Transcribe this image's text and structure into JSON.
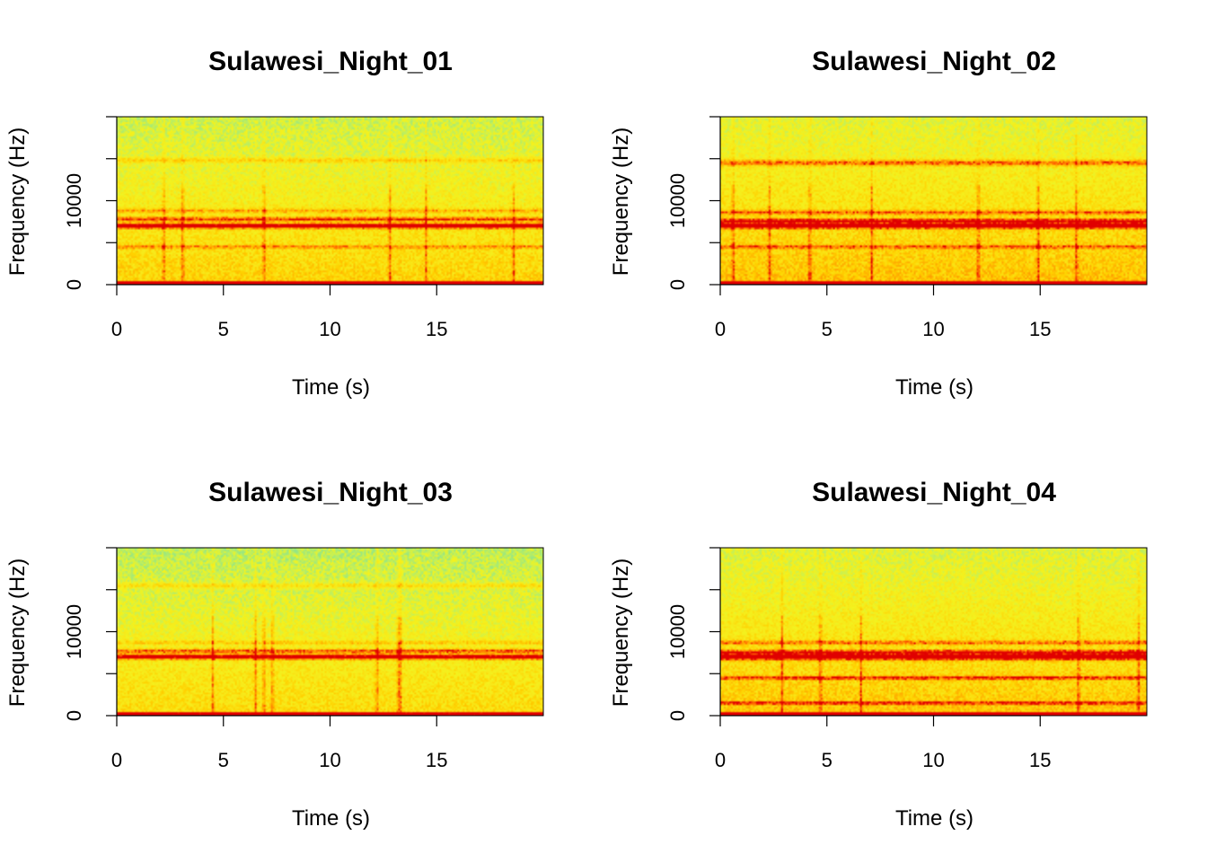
{
  "colors": {
    "palette": [
      "#8fe58a",
      "#c3f05a",
      "#f3f31e",
      "#f8e81a",
      "#ffd200",
      "#ffaa00",
      "#ff6000",
      "#e00000"
    ],
    "background": "#ffffff"
  },
  "chart_data": [
    {
      "type": "heatmap",
      "title": "Sulawesi_Night_01",
      "xlabel": "Time (s)",
      "ylabel": "Frequency (Hz)",
      "xlim": [
        0,
        20
      ],
      "ylim": [
        0,
        20000
      ],
      "xticks": [
        0,
        5,
        10,
        15
      ],
      "yticks": [
        0,
        10000
      ],
      "horizontal_bands": [
        {
          "freq": 7000,
          "intensity": 0.95,
          "width": 300
        },
        {
          "freq": 7800,
          "intensity": 0.6,
          "width": 250
        },
        {
          "freq": 4500,
          "intensity": 0.35,
          "width": 200
        },
        {
          "freq": 8800,
          "intensity": 0.35,
          "width": 250
        },
        {
          "freq": 14800,
          "intensity": 0.3,
          "width": 300
        }
      ],
      "vertical_streaks": [
        2.2,
        3.1,
        6.9,
        12.8,
        14.5,
        18.6
      ],
      "noise_center": 0.35
    },
    {
      "type": "heatmap",
      "title": "Sulawesi_Night_02",
      "xlabel": "Time (s)",
      "ylabel": "Frequency (Hz)",
      "xlim": [
        0,
        20
      ],
      "ylim": [
        0,
        20000
      ],
      "xticks": [
        0,
        5,
        10,
        15
      ],
      "yticks": [
        0,
        10000
      ],
      "horizontal_bands": [
        {
          "freq": 7000,
          "intensity": 0.95,
          "width": 300
        },
        {
          "freq": 7600,
          "intensity": 0.7,
          "width": 250
        },
        {
          "freq": 8600,
          "intensity": 0.45,
          "width": 250
        },
        {
          "freq": 4500,
          "intensity": 0.4,
          "width": 200
        },
        {
          "freq": 14500,
          "intensity": 0.55,
          "width": 350
        }
      ],
      "vertical_streaks": [
        0.6,
        2.3,
        4.2,
        7.1,
        12.1,
        14.9,
        16.7
      ],
      "noise_center": 0.42
    },
    {
      "type": "heatmap",
      "title": "Sulawesi_Night_03",
      "xlabel": "Time (s)",
      "ylabel": "Frequency (Hz)",
      "xlim": [
        0,
        20
      ],
      "ylim": [
        0,
        20000
      ],
      "xticks": [
        0,
        5,
        10,
        15
      ],
      "yticks": [
        0,
        10000
      ],
      "horizontal_bands": [
        {
          "freq": 7000,
          "intensity": 0.95,
          "width": 300
        },
        {
          "freq": 7700,
          "intensity": 0.6,
          "width": 250
        },
        {
          "freq": 8700,
          "intensity": 0.3,
          "width": 200
        },
        {
          "freq": 15500,
          "intensity": 0.3,
          "width": 300
        }
      ],
      "vertical_streaks": [
        4.5,
        6.5,
        6.9,
        7.3,
        12.2,
        13.2,
        13.3
      ],
      "noise_center": 0.3
    },
    {
      "type": "heatmap",
      "title": "Sulawesi_Night_04",
      "xlabel": "Time (s)",
      "ylabel": "Frequency (Hz)",
      "xlim": [
        0,
        20
      ],
      "ylim": [
        0,
        20000
      ],
      "xticks": [
        0,
        5,
        10,
        15
      ],
      "yticks": [
        0,
        10000
      ],
      "horizontal_bands": [
        {
          "freq": 7000,
          "intensity": 0.95,
          "width": 350
        },
        {
          "freq": 7600,
          "intensity": 0.6,
          "width": 250
        },
        {
          "freq": 4500,
          "intensity": 0.55,
          "width": 200
        },
        {
          "freq": 8700,
          "intensity": 0.45,
          "width": 250
        },
        {
          "freq": 1500,
          "intensity": 0.6,
          "width": 150
        }
      ],
      "vertical_streaks": [
        2.9,
        4.7,
        6.6,
        16.8,
        19.6
      ],
      "noise_center": 0.4
    }
  ]
}
